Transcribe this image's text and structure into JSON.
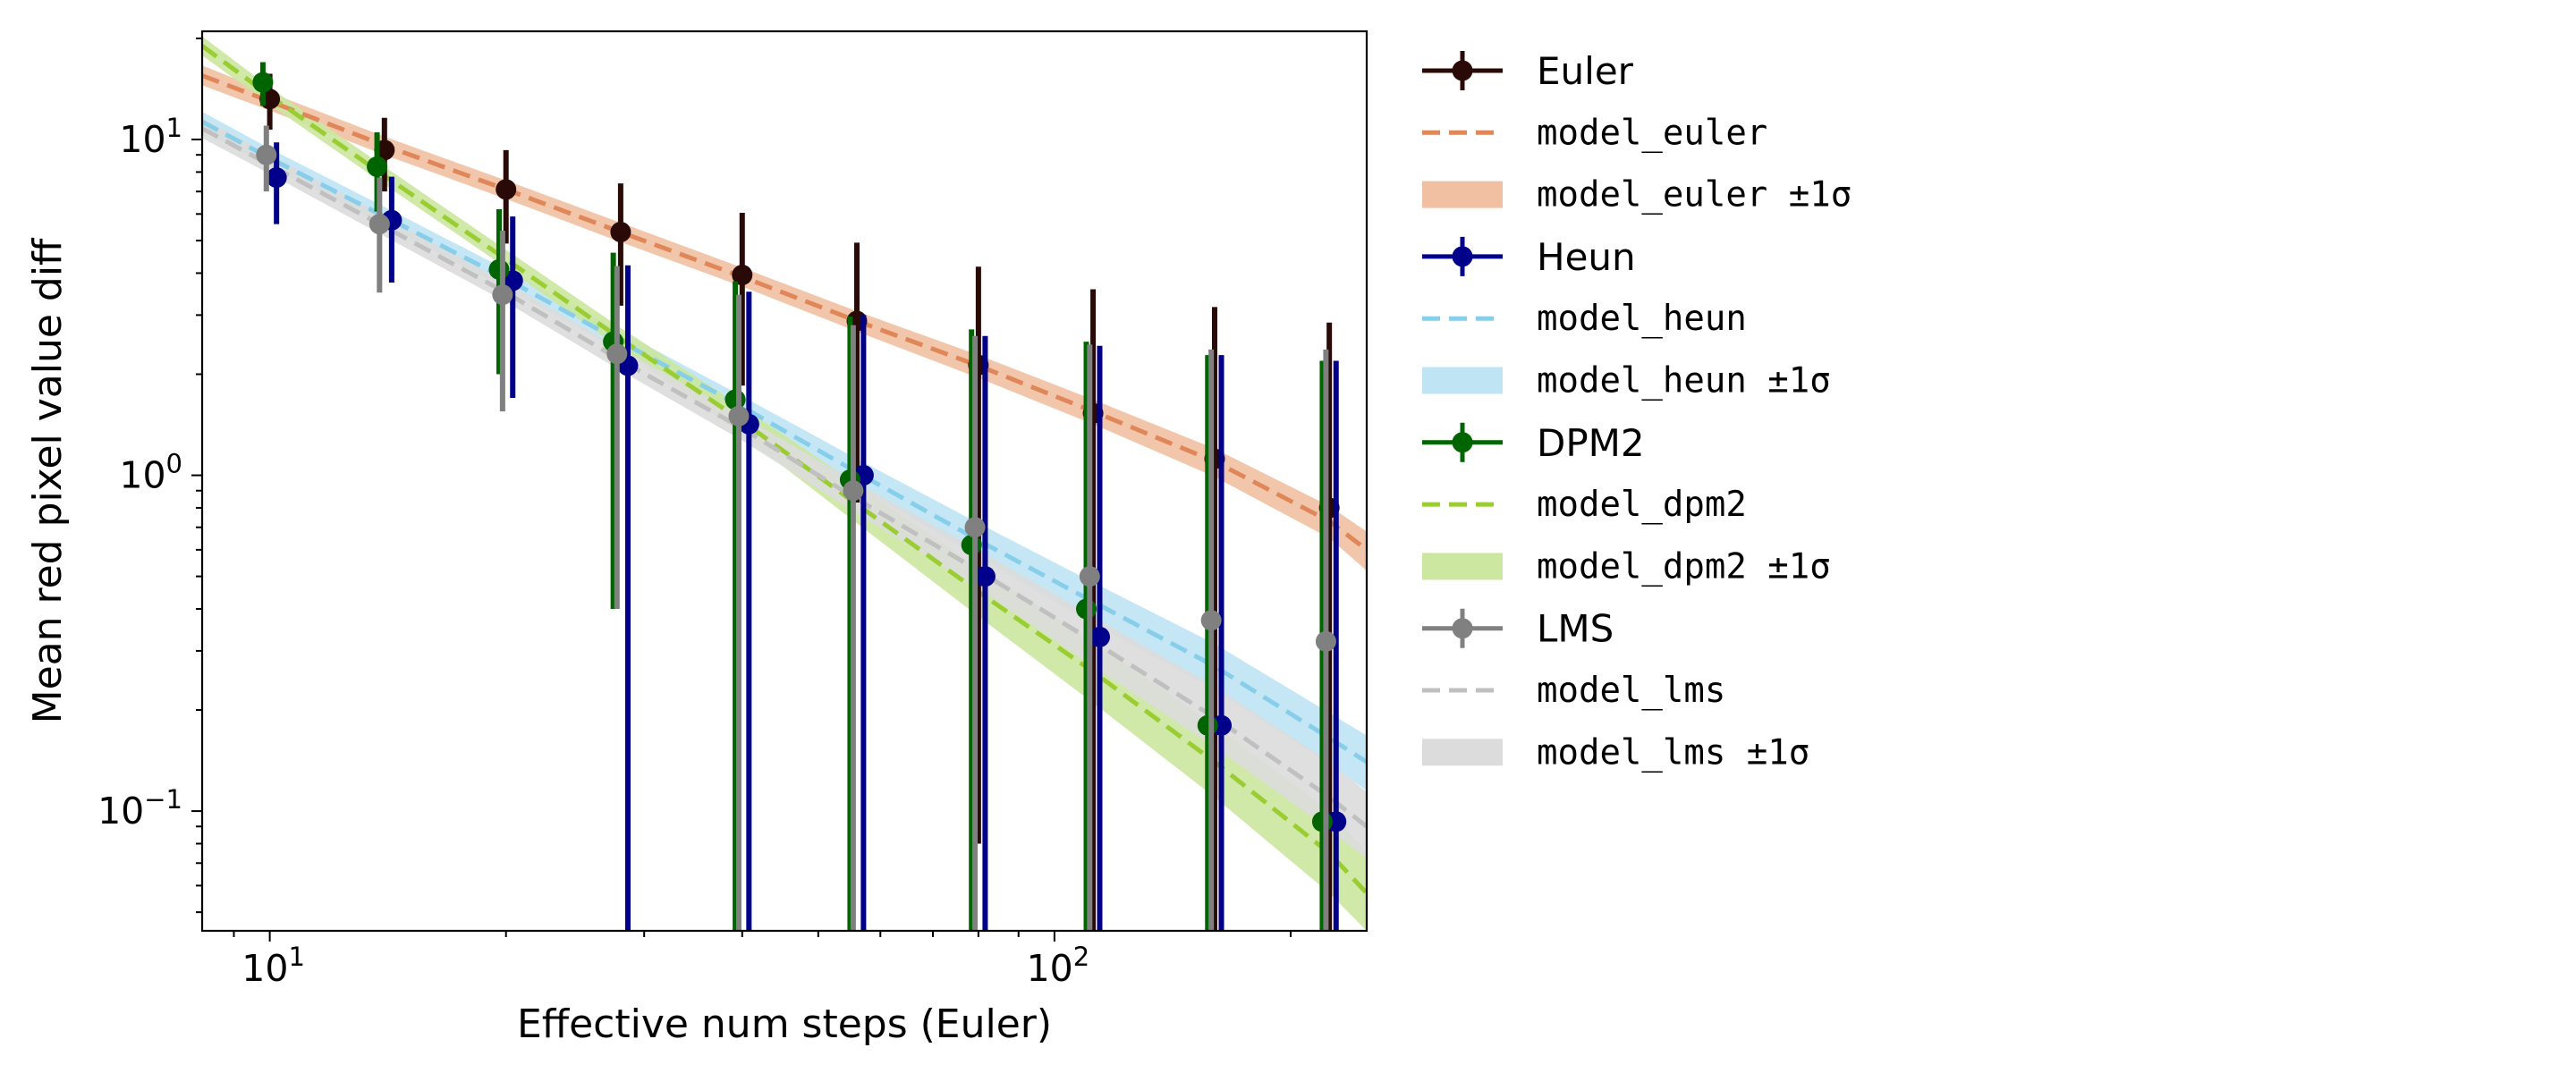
{
  "chart_data": {
    "type": "scatter",
    "xlabel": "Effective num steps (Euler)",
    "ylabel": "Mean red pixel value diff",
    "xscale": "log",
    "yscale": "log",
    "xlim": [
      8.2,
      250
    ],
    "ylim": [
      0.044,
      21
    ],
    "x_tick_labels": [
      {
        "value": 10,
        "label": "10",
        "exp": "1"
      },
      {
        "value": 100,
        "label": "10",
        "exp": "2"
      }
    ],
    "y_tick_labels": [
      {
        "value": 0.1,
        "label": "10",
        "exp": "−1"
      },
      {
        "value": 1,
        "label": "10",
        "exp": "0"
      },
      {
        "value": 10,
        "label": "10",
        "exp": "1"
      }
    ],
    "grid": false,
    "legend_position": "outside-right",
    "series": [
      {
        "name": "Euler",
        "color": "#2a0a06",
        "x": [
          10,
          14,
          20,
          28,
          40,
          56,
          80,
          112,
          160,
          224
        ],
        "y": [
          13.2,
          9.3,
          7.1,
          5.3,
          3.95,
          2.88,
          2.13,
          1.53,
          1.12,
          0.8
        ],
        "yerr": [
          2.5,
          2.3,
          2.2,
          2.1,
          2.1,
          2.05,
          2.05,
          2.05,
          2.05,
          2.05
        ]
      },
      {
        "name": "Heun",
        "color": "#00008b",
        "x": [
          10.2,
          14.3,
          20.4,
          28.6,
          40.8,
          57.1,
          81.6,
          114.2,
          163.2,
          228.5
        ],
        "y": [
          7.7,
          5.75,
          3.8,
          2.12,
          1.42,
          1.0,
          0.5,
          0.33,
          0.18,
          0.093
        ],
        "yerr": [
          2.1,
          2.0,
          2.1,
          2.1,
          2.1,
          2.0,
          2.1,
          2.1,
          2.1,
          2.1
        ]
      },
      {
        "name": "DPM2",
        "color": "#006400",
        "x": [
          9.8,
          13.7,
          19.6,
          27.4,
          39.2,
          54.9,
          78.4,
          109.8,
          156.8,
          219.5
        ],
        "y": [
          14.8,
          8.3,
          4.1,
          2.5,
          1.68,
          0.97,
          0.62,
          0.4,
          0.18,
          0.093
        ],
        "yerr": [
          2.2,
          2.2,
          2.1,
          2.1,
          2.1,
          2.0,
          2.1,
          2.1,
          2.1,
          2.1
        ]
      },
      {
        "name": "LMS",
        "color": "#808080",
        "x": [
          9.9,
          13.8,
          19.8,
          27.7,
          39.6,
          55.4,
          79.2,
          110.9,
          158.4,
          221.8
        ],
        "y": [
          9.0,
          5.6,
          3.45,
          2.3,
          1.5,
          0.9,
          0.7,
          0.5,
          0.37,
          0.32
        ],
        "yerr": [
          2.0,
          2.1,
          1.9,
          1.9,
          1.95,
          1.9,
          1.9,
          1.95,
          2.0,
          2.05
        ]
      }
    ],
    "models": [
      {
        "name": "model_euler",
        "band_label": "model_euler ±1σ",
        "color": "#e0875a",
        "band_color": "#f1c0a2",
        "x": [
          8.2,
          10,
          14,
          20,
          28,
          40,
          56,
          80,
          112,
          160,
          224,
          250
        ],
        "y": [
          15.5,
          13.0,
          9.6,
          7.1,
          5.3,
          3.9,
          2.88,
          2.12,
          1.55,
          1.1,
          0.73,
          0.6
        ],
        "lo": [
          14.5,
          12.2,
          9.0,
          6.65,
          4.95,
          3.65,
          2.68,
          1.95,
          1.42,
          0.99,
          0.65,
          0.52
        ],
        "hi": [
          16.6,
          13.8,
          10.2,
          7.55,
          5.65,
          4.15,
          3.08,
          2.28,
          1.68,
          1.2,
          0.81,
          0.68
        ]
      },
      {
        "name": "model_heun",
        "band_label": "model_heun ±1σ",
        "color": "#87ceeb",
        "band_color": "#bfe4f4",
        "x": [
          8.2,
          10,
          14,
          20,
          28,
          40,
          56,
          80,
          112,
          160,
          224,
          250
        ],
        "y": [
          11.3,
          8.8,
          5.9,
          3.85,
          2.5,
          1.6,
          1.02,
          0.64,
          0.42,
          0.27,
          0.165,
          0.14
        ],
        "lo": [
          10.6,
          8.3,
          5.55,
          3.6,
          2.35,
          1.5,
          0.93,
          0.57,
          0.36,
          0.23,
          0.138,
          0.115
        ],
        "hi": [
          12.1,
          9.4,
          6.3,
          4.1,
          2.68,
          1.72,
          1.12,
          0.72,
          0.48,
          0.315,
          0.196,
          0.168
        ]
      },
      {
        "name": "model_dpm2",
        "band_label": "model_dpm2 ±1σ",
        "color": "#9acd32",
        "band_color": "#cbe7a0",
        "x": [
          8.2,
          10,
          14,
          20,
          28,
          40,
          56,
          80,
          112,
          160,
          224,
          250
        ],
        "y": [
          19.0,
          13.5,
          7.8,
          4.4,
          2.55,
          1.45,
          0.82,
          0.45,
          0.26,
          0.14,
          0.075,
          0.057
        ],
        "lo": [
          17.8,
          12.7,
          7.35,
          4.15,
          2.38,
          1.32,
          0.72,
          0.38,
          0.21,
          0.11,
          0.057,
          0.044
        ],
        "hi": [
          20.3,
          14.3,
          8.3,
          4.7,
          2.75,
          1.6,
          0.94,
          0.53,
          0.32,
          0.18,
          0.1,
          0.075
        ]
      },
      {
        "name": "model_lms",
        "band_label": "model_lms ±1σ",
        "color": "#c0c0c0",
        "band_color": "#dcdcdc",
        "x": [
          8.2,
          10,
          14,
          20,
          28,
          40,
          56,
          80,
          112,
          160,
          224,
          250
        ],
        "y": [
          10.8,
          8.4,
          5.5,
          3.5,
          2.2,
          1.38,
          0.85,
          0.52,
          0.32,
          0.19,
          0.11,
          0.09
        ],
        "lo": [
          10.1,
          7.9,
          5.15,
          3.28,
          2.05,
          1.27,
          0.77,
          0.46,
          0.27,
          0.155,
          0.088,
          0.072
        ],
        "hi": [
          11.6,
          9.0,
          5.9,
          3.75,
          2.38,
          1.5,
          0.95,
          0.6,
          0.38,
          0.235,
          0.14,
          0.114
        ]
      }
    ],
    "legend": [
      {
        "kind": "marker",
        "label": "Euler",
        "ref": "Euler"
      },
      {
        "kind": "line",
        "label": "model_euler",
        "ref": "model_euler"
      },
      {
        "kind": "band",
        "label": "model_euler ±1σ",
        "ref": "model_euler"
      },
      {
        "kind": "marker",
        "label": "Heun",
        "ref": "Heun"
      },
      {
        "kind": "line",
        "label": "model_heun",
        "ref": "model_heun"
      },
      {
        "kind": "band",
        "label": "model_heun ±1σ",
        "ref": "model_heun"
      },
      {
        "kind": "marker",
        "label": "DPM2",
        "ref": "DPM2"
      },
      {
        "kind": "line",
        "label": "model_dpm2",
        "ref": "model_dpm2"
      },
      {
        "kind": "band",
        "label": "model_dpm2 ±1σ",
        "ref": "model_dpm2"
      },
      {
        "kind": "marker",
        "label": "LMS",
        "ref": "LMS"
      },
      {
        "kind": "line",
        "label": "model_lms",
        "ref": "model_lms"
      },
      {
        "kind": "band",
        "label": "model_lms ±1σ",
        "ref": "model_lms"
      }
    ]
  }
}
